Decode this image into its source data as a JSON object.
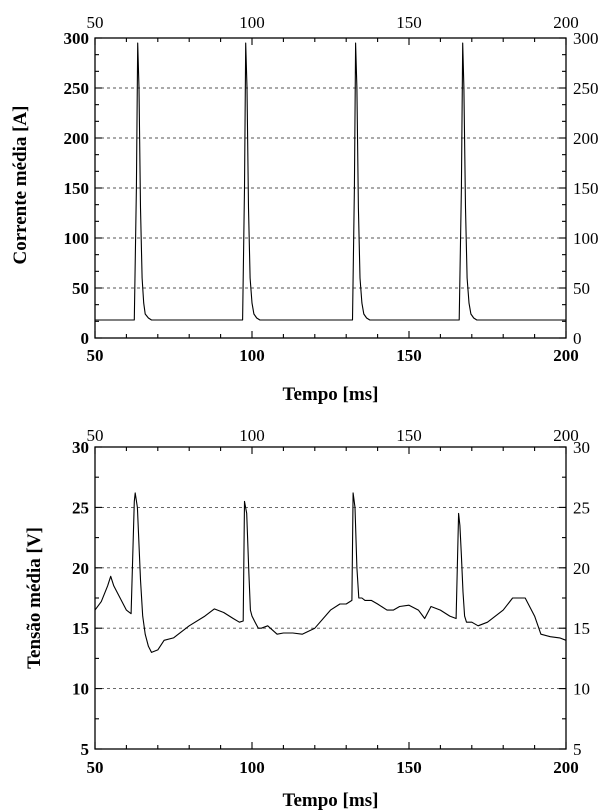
{
  "chart_data": [
    {
      "type": "line",
      "xlabel": "Tempo [ms]",
      "ylabel": "Corrente média [A]",
      "xlim": [
        50,
        200
      ],
      "ylim": [
        0,
        300
      ],
      "xticks": [
        50,
        100,
        150,
        200
      ],
      "yticks": [
        0,
        50,
        100,
        150,
        200,
        250,
        300
      ],
      "xtick_labels_bottom": [
        "50",
        "100",
        "150",
        "200"
      ],
      "xtick_labels_top": [
        "50",
        "100",
        "150",
        "200"
      ],
      "ytick_labels_left": [
        "0",
        "50",
        "100",
        "150",
        "200",
        "250",
        "300"
      ],
      "ytick_labels_right": [
        "0",
        "50",
        "100",
        "150",
        "200",
        "250",
        "300"
      ],
      "grid": "horizontal dashed",
      "series": [
        {
          "color": "#000000",
          "x": [
            50,
            62.5,
            63.2,
            63.6,
            64.0,
            64.5,
            65.0,
            65.5,
            66.0,
            67.0,
            68.0,
            97.0,
            97.6,
            98.0,
            98.4,
            98.9,
            99.4,
            100.0,
            100.6,
            101.5,
            102.5,
            132.0,
            132.6,
            133.0,
            133.4,
            133.9,
            134.4,
            135.0,
            135.6,
            136.5,
            137.5,
            166.0,
            166.7,
            167.1,
            167.5,
            168.0,
            168.5,
            169.1,
            169.7,
            170.6,
            171.6,
            200
          ],
          "y": [
            18,
            18,
            150,
            295,
            250,
            130,
            60,
            35,
            24,
            20,
            18,
            18,
            150,
            295,
            250,
            130,
            60,
            35,
            24,
            20,
            18,
            18,
            150,
            295,
            250,
            130,
            60,
            35,
            24,
            20,
            18,
            18,
            150,
            295,
            250,
            130,
            60,
            35,
            24,
            20,
            18,
            18
          ]
        }
      ]
    },
    {
      "type": "line",
      "xlabel": "Tempo [ms]",
      "ylabel": "Tensão média [V]",
      "xlim": [
        50,
        200
      ],
      "ylim": [
        5,
        30
      ],
      "xticks": [
        50,
        100,
        150,
        200
      ],
      "yticks": [
        5,
        10,
        15,
        20,
        25,
        30
      ],
      "xtick_labels_bottom": [
        "50",
        "100",
        "150",
        "200"
      ],
      "xtick_labels_top": [
        "50",
        "100",
        "150",
        "200"
      ],
      "ytick_labels_left": [
        "5",
        "10",
        "15",
        "20",
        "25",
        "30"
      ],
      "ytick_labels_right": [
        "5",
        "10",
        "15",
        "20",
        "25",
        "30"
      ],
      "grid": "horizontal dashed",
      "series": [
        {
          "color": "#000000",
          "x": [
            50,
            52,
            54,
            55,
            56,
            58,
            60,
            61.5,
            62.5,
            62.8,
            63.5,
            64.5,
            65.2,
            66,
            67,
            68,
            70,
            72,
            75,
            80,
            85,
            88,
            91,
            94,
            96,
            97.2,
            97.6,
            98.3,
            99,
            99.5,
            100,
            101,
            102,
            103,
            105,
            108,
            110,
            113,
            116,
            120,
            125,
            128,
            130,
            131.8,
            132.2,
            132.8,
            133.4,
            134,
            135,
            136,
            138,
            140,
            143,
            145,
            147,
            150,
            153,
            155,
            157,
            160,
            163,
            165,
            165.8,
            166.2,
            166.7,
            167.2,
            167.7,
            168.3,
            169,
            170,
            172,
            175,
            180,
            183,
            185,
            187,
            188,
            190,
            192,
            195,
            198,
            200
          ],
          "y": [
            16.5,
            17.2,
            18.5,
            19.3,
            18.5,
            17.5,
            16.5,
            16.2,
            25.5,
            26.2,
            25,
            19,
            16,
            14.5,
            13.5,
            13,
            13.2,
            14,
            14.2,
            15.2,
            16,
            16.6,
            16.3,
            15.8,
            15.5,
            15.6,
            25.5,
            24.5,
            19.5,
            16.5,
            16,
            15.5,
            15,
            15,
            15.2,
            14.5,
            14.6,
            14.6,
            14.5,
            15,
            16.5,
            17,
            17,
            17.3,
            26.2,
            25,
            20,
            17.5,
            17.5,
            17.3,
            17.3,
            17,
            16.5,
            16.5,
            16.8,
            16.9,
            16.5,
            15.8,
            16.8,
            16.5,
            16,
            15.8,
            24.5,
            23.5,
            21,
            18,
            16,
            15.5,
            15.5,
            15.5,
            15.2,
            15.5,
            16.5,
            17.5,
            17.5,
            17.5,
            17,
            16,
            14.5,
            14.3,
            14.2,
            14
          ]
        }
      ]
    }
  ]
}
